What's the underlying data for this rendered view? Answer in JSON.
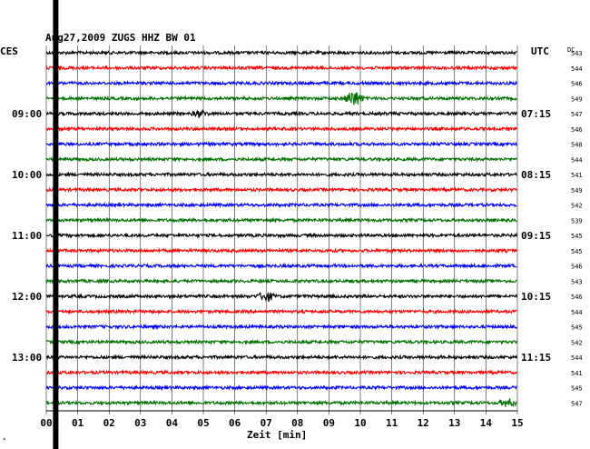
{
  "header": {
    "title": "Aug27,2009   ZUGS HHZ BW 01",
    "left_label": "CES",
    "right_label": "UTC",
    "dc_label": "DC"
  },
  "footer": {
    "xlabel": "Zeit [min]",
    "corner_mark": "*"
  },
  "colors": {
    "background": "#ffffff",
    "grid": "#000000",
    "trace_cycle": [
      "#000000",
      "#ff0000",
      "#0000ff",
      "#007000"
    ],
    "marker_bar": "#000000"
  },
  "chart_data": {
    "type": "line",
    "title": "Aug27,2009   ZUGS HHZ BW 01",
    "xlabel": "Zeit [min]",
    "ylabel": "",
    "x_range": [
      0,
      15
    ],
    "x_ticks": [
      "00",
      "01",
      "02",
      "03",
      "04",
      "05",
      "06",
      "07",
      "08",
      "09",
      "10",
      "11",
      "12",
      "13",
      "14",
      "15"
    ],
    "grid": true,
    "rows": 24,
    "minutes_per_row": 15,
    "left_time_labels": [
      {
        "row": 4,
        "label": "09:00"
      },
      {
        "row": 8,
        "label": "10:00"
      },
      {
        "row": 12,
        "label": "11:00"
      },
      {
        "row": 16,
        "label": "12:00"
      },
      {
        "row": 20,
        "label": "13:00"
      }
    ],
    "right_time_labels": [
      {
        "row": 4,
        "label": "07:15"
      },
      {
        "row": 8,
        "label": "08:15"
      },
      {
        "row": 12,
        "label": "09:15"
      },
      {
        "row": 16,
        "label": "10:15"
      },
      {
        "row": 20,
        "label": "11:15"
      }
    ],
    "dc_offsets": [
      543,
      544,
      546,
      549,
      547,
      546,
      548,
      544,
      541,
      549,
      542,
      539,
      545,
      545,
      546,
      543,
      546,
      544,
      545,
      542,
      544,
      541,
      545,
      547
    ],
    "events": [
      {
        "row": 3,
        "minute": 9.8,
        "amplitude": 1.0
      },
      {
        "row": 16,
        "minute": 7.0,
        "amplitude": 0.55
      },
      {
        "row": 23,
        "minute": 14.7,
        "amplitude": 0.45
      },
      {
        "row": 4,
        "minute": 4.9,
        "amplitude": 0.35
      }
    ],
    "marker_minute": 0.3
  }
}
